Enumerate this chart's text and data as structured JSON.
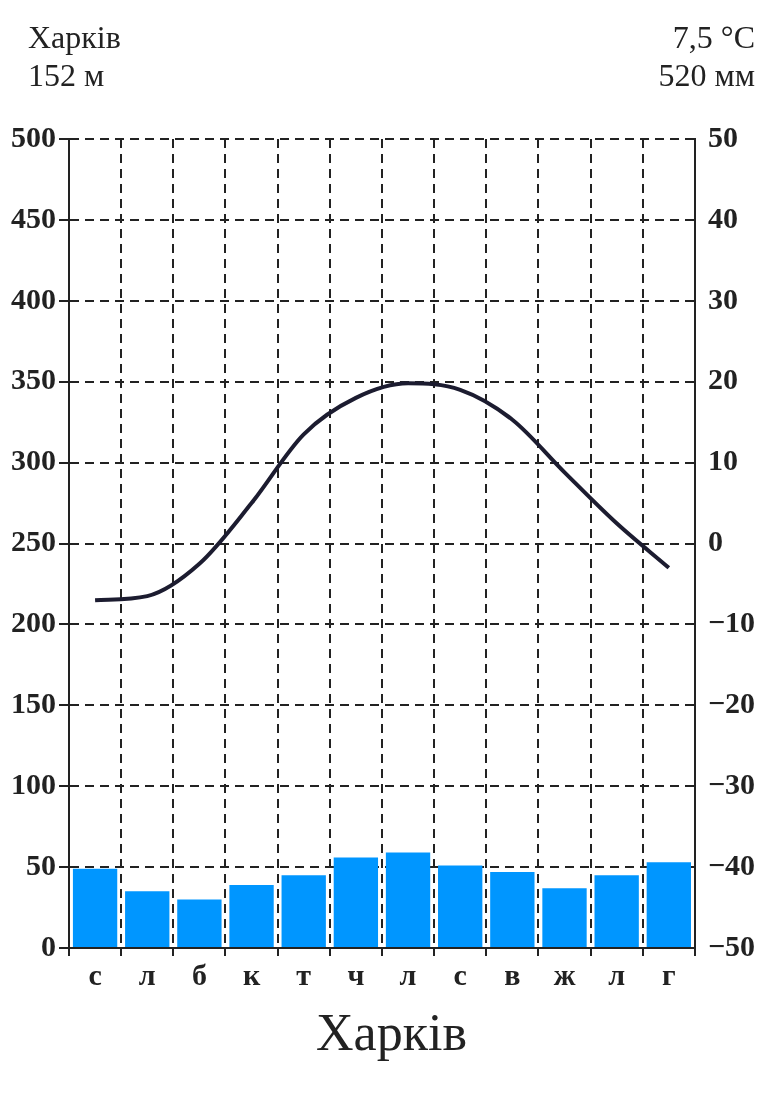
{
  "chart_data": {
    "type": "bar",
    "title": "Харків",
    "annotations": [
      "Харків",
      "152 м",
      "7,5 °C",
      "520 мм"
    ],
    "categories": [
      "с",
      "л",
      "б",
      "к",
      "т",
      "ч",
      "л",
      "с",
      "в",
      "ж",
      "л",
      "г"
    ],
    "series": [
      {
        "color": "#0096ff",
        "values": [
          49,
          35,
          30,
          39,
          45,
          56,
          59,
          51,
          47,
          37,
          45,
          53
        ]
      },
      {
        "type": "line",
        "axis": "y2",
        "color": "#1c1c30",
        "values": [
          -7,
          -6.5,
          -2.5,
          5,
          13.5,
          18,
          19.8,
          19,
          15.3,
          8.8,
          2.5,
          -3
        ]
      }
    ],
    "ylim": [
      0,
      500
    ],
    "yticks": [
      0,
      50,
      100,
      150,
      200,
      250,
      300,
      350,
      400,
      450,
      500
    ],
    "y2lim": [
      -50,
      50
    ],
    "y2ticks": [
      {
        "value": -50,
        "label": "−50"
      },
      {
        "value": -40,
        "label": "−40"
      },
      {
        "value": -30,
        "label": "−30"
      },
      {
        "value": -20,
        "label": "−20"
      },
      {
        "value": -10,
        "label": "−10"
      },
      0,
      10,
      20,
      30,
      40,
      50
    ],
    "grid": true,
    "legend": false
  }
}
